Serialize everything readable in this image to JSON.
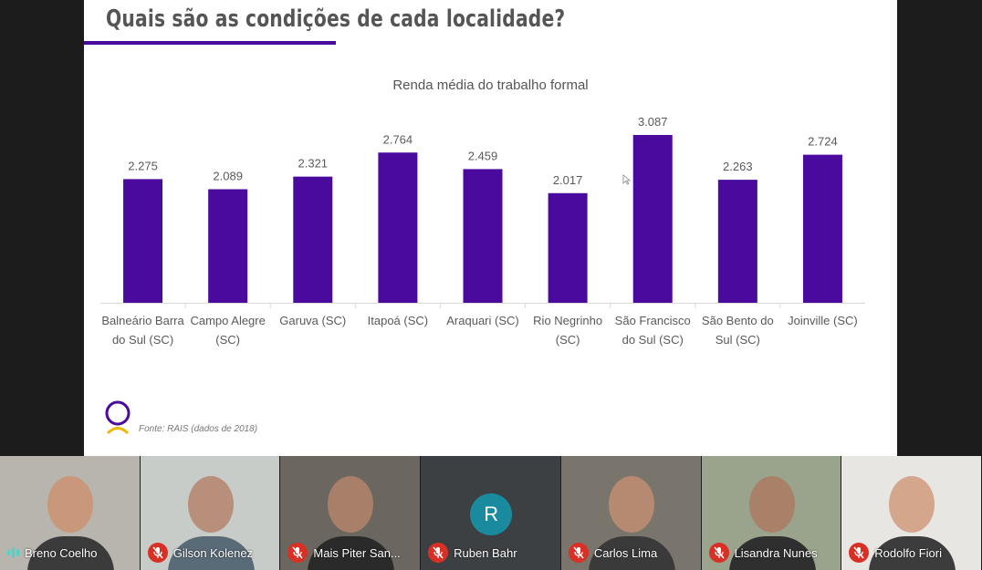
{
  "slide": {
    "title": "Quais são as condições de cada localidade?",
    "source": "Fonte: RAIS (dados de 2018)",
    "accent_color": "#4a0a9e"
  },
  "chart_data": {
    "type": "bar",
    "title": "Renda média do trabalho formal",
    "categories": [
      [
        "Balneário Barra",
        "do Sul (SC)"
      ],
      [
        "Campo Alegre",
        "(SC)"
      ],
      [
        "Garuva (SC)"
      ],
      [
        "Itapoá (SC)"
      ],
      [
        "Araquari (SC)"
      ],
      [
        "Rio Negrinho",
        "(SC)"
      ],
      [
        "São Francisco",
        "do Sul (SC)"
      ],
      [
        "São Bento do",
        "Sul (SC)"
      ],
      [
        "Joinville (SC)"
      ]
    ],
    "values": [
      2275,
      2089,
      2321,
      2764,
      2459,
      2017,
      3087,
      2263,
      2724
    ],
    "data_labels": [
      "2.275",
      "2.089",
      "2.321",
      "2.764",
      "2.459",
      "2.017",
      "3.087",
      "2.263",
      "2.724"
    ],
    "ylim": [
      0,
      3087
    ],
    "bar_color": "#4a0a9e",
    "grid": false,
    "xlabel": "",
    "ylabel": ""
  },
  "participants": [
    {
      "name": "Breno Coelho",
      "muted": false,
      "bg": "#b8b4ae",
      "skin": "#c9977a",
      "shirt": "#3b3b3b"
    },
    {
      "name": "Gilson Kolenez",
      "muted": true,
      "bg": "#c8ccc8",
      "skin": "#b88f7a",
      "shirt": "#5a6b78"
    },
    {
      "name": "Mais Piter San...",
      "muted": true,
      "bg": "#6b6660",
      "skin": "#a8806a",
      "shirt": "#2a2a2a"
    },
    {
      "name": "Ruben Bahr",
      "muted": true,
      "avatar_letter": "R",
      "avatar_color": "#1a8a9e"
    },
    {
      "name": "Carlos Lima",
      "muted": true,
      "bg": "#7a756c",
      "skin": "#b58a70",
      "shirt": "#3a3a3a"
    },
    {
      "name": "Lisandra Nunes",
      "muted": true,
      "bg": "#9aa48c",
      "skin": "#a98068",
      "shirt": "#2f2f2f"
    },
    {
      "name": "Rodolfo Fiori",
      "muted": true,
      "bg": "#e8e6e2",
      "skin": "#d4a68c",
      "shirt": "#3c3c3c"
    }
  ]
}
